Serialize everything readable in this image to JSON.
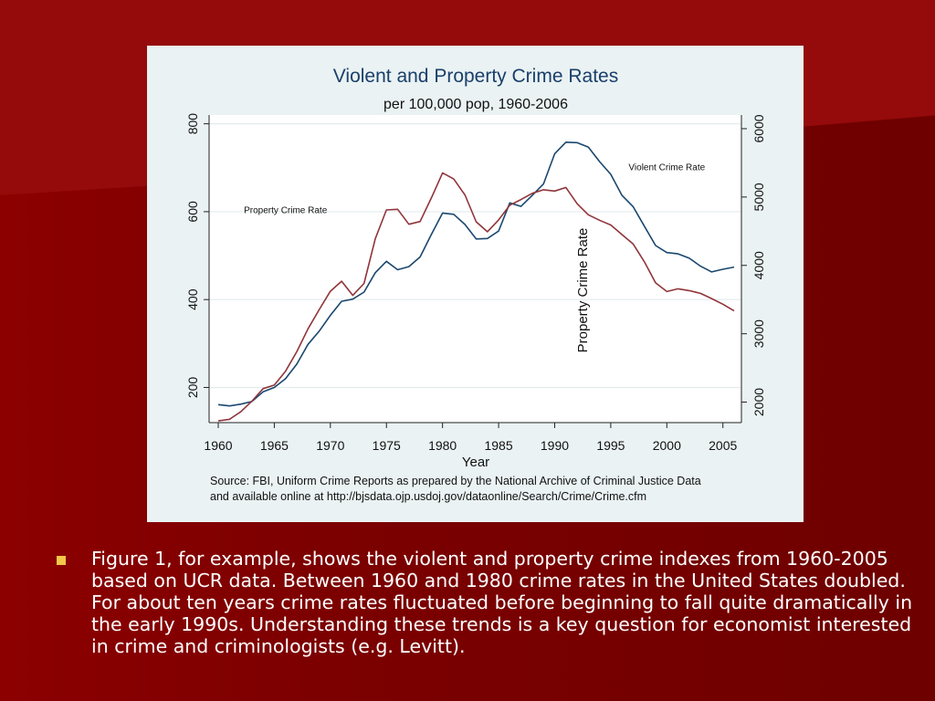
{
  "chart_data": {
    "type": "line",
    "title": "Violent and Property Crime Rates",
    "subtitle": "per 100,000 pop, 1960-2006",
    "xlabel": "Year",
    "ylabel_right": "Property Crime Rate",
    "source": "Source: FBI, Uniform Crime Reports as prepared by the National Archive of Criminal Justice Data",
    "source_line2": "and available online at http://bjsdata.ojp.usdoj.gov/dataonline/Search/Crime/Crime.cfm",
    "xlim": [
      1960,
      2006
    ],
    "ylim_left": [
      120,
      820
    ],
    "ylim_right": [
      1700,
      6200
    ],
    "x_ticks": [
      1960,
      1965,
      1970,
      1975,
      1980,
      1985,
      1990,
      1995,
      2000,
      2005
    ],
    "y_left_ticks": [
      200,
      400,
      600,
      800
    ],
    "y_right_ticks": [
      2000,
      3000,
      4000,
      5000,
      6000
    ],
    "grid": true,
    "line_colors": {
      "violent": "#1a476f",
      "property": "#90353b"
    },
    "series": [
      {
        "name": "Violent Crime Rate",
        "axis": "left",
        "x": [
          1960,
          1961,
          1962,
          1963,
          1964,
          1965,
          1966,
          1967,
          1968,
          1969,
          1970,
          1971,
          1972,
          1973,
          1974,
          1975,
          1976,
          1977,
          1978,
          1979,
          1980,
          1981,
          1982,
          1983,
          1984,
          1985,
          1986,
          1987,
          1988,
          1989,
          1990,
          1991,
          1992,
          1993,
          1994,
          1995,
          1996,
          1997,
          1998,
          1999,
          2000,
          2001,
          2002,
          2003,
          2004,
          2005,
          2006
        ],
        "values": [
          161,
          158,
          162,
          168,
          190,
          200,
          220,
          253,
          298,
          328,
          364,
          396,
          401,
          417,
          461,
          487,
          468,
          475,
          497,
          548,
          597,
          594,
          571,
          538,
          539,
          556,
          620,
          612,
          637,
          663,
          732,
          758,
          757,
          747,
          714,
          685,
          637,
          611,
          567,
          523,
          507,
          504,
          494,
          476,
          463,
          469,
          474
        ]
      },
      {
        "name": "Property Crime Rate",
        "axis": "right",
        "x": [
          1960,
          1961,
          1962,
          1963,
          1964,
          1965,
          1966,
          1967,
          1968,
          1969,
          1970,
          1971,
          1972,
          1973,
          1974,
          1975,
          1976,
          1977,
          1978,
          1979,
          1980,
          1981,
          1982,
          1983,
          1984,
          1985,
          1986,
          1987,
          1988,
          1989,
          1990,
          1991,
          1992,
          1993,
          1994,
          1995,
          1996,
          1997,
          1998,
          1999,
          2000,
          2001,
          2002,
          2003,
          2004,
          2005,
          2006
        ],
        "values": [
          1726,
          1748,
          1857,
          2012,
          2197,
          2249,
          2452,
          2736,
          3071,
          3351,
          3621,
          3768,
          3561,
          3737,
          4389,
          4811,
          4820,
          4602,
          4642,
          4986,
          5353,
          5264,
          5032,
          4638,
          4492,
          4666,
          4881,
          4963,
          5054,
          5107,
          5088,
          5140,
          4903,
          4740,
          4660,
          4591,
          4451,
          4312,
          4053,
          3744,
          3618,
          3658,
          3631,
          3591,
          3515,
          3432,
          3335
        ]
      }
    ],
    "annotations": [
      {
        "text": "Violent Crime Rate",
        "x": 2000,
        "y_left": 694
      },
      {
        "text": "Property Crime Rate",
        "x": 1966,
        "y_left": 597
      }
    ]
  },
  "bullet": {
    "text": "Figure 1, for example, shows the violent and property crime indexes from 1960-2005 based on UCR data.  Between 1960 and 1980 crime rates in the United States doubled.  For about ten years crime rates fluctuated before beginning to fall quite dramatically in the early 1990s.  Understanding these trends is a key question for economist interested in crime and criminologists (e.g. Levitt)."
  }
}
